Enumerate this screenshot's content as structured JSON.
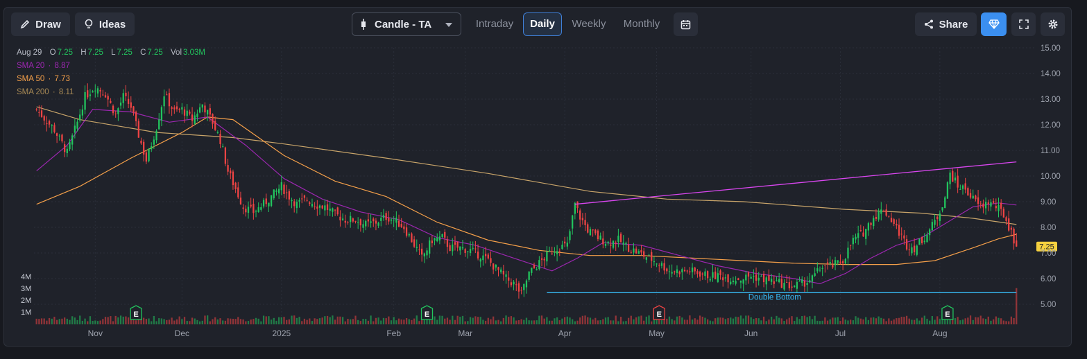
{
  "toolbar": {
    "draw_label": "Draw",
    "ideas_label": "Ideas",
    "chart_type_label": "Candle - TA",
    "timeframes": [
      "Intraday",
      "Daily",
      "Weekly",
      "Monthly"
    ],
    "active_timeframe": "Daily",
    "share_label": "Share",
    "icons": [
      "pencil-icon",
      "lightbulb-icon",
      "candlestick-icon",
      "chevron-down-icon",
      "calendar-icon",
      "share-icon",
      "diamond-icon",
      "fullscreen-icon",
      "gear-icon"
    ]
  },
  "legend": {
    "date": "Aug 29",
    "o_label": "O",
    "o_value": "7.25",
    "h_label": "H",
    "h_value": "7.25",
    "l_label": "L",
    "l_value": "7.25",
    "c_label": "C",
    "c_value": "7.25",
    "vol_label": "Vol",
    "vol_value": "3.03M",
    "sma20_label": "SMA 20",
    "sma20_value": "8.87",
    "sma50_label": "SMA 50",
    "sma50_value": "7.73",
    "sma200_label": "SMA 200",
    "sma200_value": "8.11",
    "sep": "·"
  },
  "colors": {
    "up": "#22c55e",
    "down": "#ef4444",
    "sma20": "#9c27b0",
    "sma50": "#f5a04a",
    "sma200": "#c9a56a",
    "trendline": "#d946ef",
    "support": "#38bdf8",
    "accent": "#3b82f6",
    "price_tag": "#f4d03f"
  },
  "chart_data": {
    "type": "candlestick",
    "y_ticks": [
      "15.00",
      "14.00",
      "13.00",
      "12.00",
      "11.00",
      "10.00",
      "9.00",
      "8.00",
      "7.00",
      "6.00",
      "5.00"
    ],
    "ylim": [
      4.35,
      15.0
    ],
    "volume_ticks": [
      "4M",
      "3M",
      "2M",
      "1M"
    ],
    "x_ticks": [
      {
        "label": "Nov",
        "day": 16
      },
      {
        "label": "Dec",
        "day": 50
      },
      {
        "label": "2025",
        "day": 89
      },
      {
        "label": "Feb",
        "day": 133
      },
      {
        "label": "Mar",
        "day": 161
      },
      {
        "label": "Apr",
        "day": 200
      },
      {
        "label": "May",
        "day": 236
      },
      {
        "label": "Jun",
        "day": 273
      },
      {
        "label": "Jul",
        "day": 308
      },
      {
        "label": "Aug",
        "day": 347
      }
    ],
    "day_range": [
      -8,
      384
    ],
    "last_price": "7.25",
    "close_series": [
      [
        -7,
        12.6
      ],
      [
        0,
        11.8
      ],
      [
        5,
        10.9
      ],
      [
        9,
        12.1
      ],
      [
        12,
        13.1
      ],
      [
        16,
        13.5
      ],
      [
        20,
        13.2
      ],
      [
        24,
        12.4
      ],
      [
        27,
        13.1
      ],
      [
        30,
        12.7
      ],
      [
        33,
        11.6
      ],
      [
        36,
        10.6
      ],
      [
        40,
        11.9
      ],
      [
        43,
        13.2
      ],
      [
        47,
        12.5
      ],
      [
        50,
        12.6
      ],
      [
        54,
        12.2
      ],
      [
        58,
        12.8
      ],
      [
        62,
        12.1
      ],
      [
        65,
        11.4
      ],
      [
        68,
        10.2
      ],
      [
        71,
        9.5
      ],
      [
        74,
        8.8
      ],
      [
        78,
        8.6
      ],
      [
        82,
        8.9
      ],
      [
        86,
        9.3
      ],
      [
        89,
        9.6
      ],
      [
        92,
        9.2
      ],
      [
        95,
        8.9
      ],
      [
        99,
        9.1
      ],
      [
        102,
        8.9
      ],
      [
        106,
        8.8
      ],
      [
        110,
        8.5
      ],
      [
        114,
        8.3
      ],
      [
        118,
        8.3
      ],
      [
        122,
        8.1
      ],
      [
        126,
        8.2
      ],
      [
        130,
        8.4
      ],
      [
        133,
        8.3
      ],
      [
        137,
        8.0
      ],
      [
        140,
        7.5
      ],
      [
        144,
        6.8
      ],
      [
        148,
        7.5
      ],
      [
        152,
        7.6
      ],
      [
        155,
        7.2
      ],
      [
        159,
        7.2
      ],
      [
        163,
        7.1
      ],
      [
        167,
        6.9
      ],
      [
        170,
        6.7
      ],
      [
        174,
        6.3
      ],
      [
        177,
        6.0
      ],
      [
        180,
        5.8
      ],
      [
        183,
        5.4
      ],
      [
        186,
        6.2
      ],
      [
        190,
        6.6
      ],
      [
        194,
        7.0
      ],
      [
        197,
        7.2
      ],
      [
        201,
        7.3
      ],
      [
        204,
        8.9
      ],
      [
        206,
        8.4
      ],
      [
        209,
        7.9
      ],
      [
        213,
        7.6
      ],
      [
        217,
        7.4
      ],
      [
        221,
        7.5
      ],
      [
        225,
        7.2
      ],
      [
        229,
        7.0
      ],
      [
        233,
        6.8
      ],
      [
        237,
        6.6
      ],
      [
        241,
        6.3
      ],
      [
        245,
        6.3
      ],
      [
        249,
        6.3
      ],
      [
        253,
        6.2
      ],
      [
        257,
        6.1
      ],
      [
        261,
        6.1
      ],
      [
        265,
        6.0
      ],
      [
        269,
        6.0
      ],
      [
        273,
        6.1
      ],
      [
        277,
        6.0
      ],
      [
        281,
        5.9
      ],
      [
        285,
        5.8
      ],
      [
        289,
        5.7
      ],
      [
        293,
        5.8
      ],
      [
        297,
        6.0
      ],
      [
        301,
        6.5
      ],
      [
        305,
        6.5
      ],
      [
        309,
        6.7
      ],
      [
        313,
        7.5
      ],
      [
        317,
        7.8
      ],
      [
        321,
        8.4
      ],
      [
        325,
        8.7
      ],
      [
        328,
        8.3
      ],
      [
        331,
        7.8
      ],
      [
        334,
        7.3
      ],
      [
        337,
        7.2
      ],
      [
        340,
        7.5
      ],
      [
        343,
        7.9
      ],
      [
        346,
        8.4
      ],
      [
        349,
        9.2
      ],
      [
        351,
        10.1
      ],
      [
        354,
        9.6
      ],
      [
        357,
        9.5
      ],
      [
        360,
        9.1
      ],
      [
        363,
        8.8
      ],
      [
        366,
        9.0
      ],
      [
        369,
        8.8
      ],
      [
        372,
        8.5
      ],
      [
        375,
        7.8
      ],
      [
        377,
        7.25
      ]
    ],
    "sma20": [
      [
        -7,
        10.2
      ],
      [
        5,
        11.2
      ],
      [
        15,
        12.6
      ],
      [
        30,
        12.5
      ],
      [
        45,
        12.1
      ],
      [
        60,
        12.3
      ],
      [
        75,
        11.2
      ],
      [
        90,
        9.9
      ],
      [
        105,
        9.1
      ],
      [
        120,
        8.6
      ],
      [
        135,
        8.3
      ],
      [
        150,
        7.6
      ],
      [
        165,
        7.3
      ],
      [
        180,
        6.8
      ],
      [
        195,
        6.3
      ],
      [
        205,
        6.8
      ],
      [
        215,
        7.4
      ],
      [
        230,
        7.3
      ],
      [
        245,
        6.9
      ],
      [
        260,
        6.5
      ],
      [
        275,
        6.2
      ],
      [
        290,
        6.0
      ],
      [
        300,
        5.8
      ],
      [
        310,
        6.2
      ],
      [
        320,
        6.8
      ],
      [
        330,
        7.3
      ],
      [
        340,
        7.6
      ],
      [
        350,
        8.2
      ],
      [
        360,
        8.8
      ],
      [
        370,
        8.95
      ],
      [
        377,
        8.87
      ]
    ],
    "sma50": [
      [
        -7,
        8.9
      ],
      [
        10,
        9.6
      ],
      [
        30,
        10.7
      ],
      [
        50,
        11.7
      ],
      [
        60,
        12.3
      ],
      [
        70,
        12.2
      ],
      [
        90,
        10.8
      ],
      [
        110,
        9.8
      ],
      [
        130,
        9.2
      ],
      [
        150,
        8.2
      ],
      [
        170,
        7.5
      ],
      [
        190,
        7.1
      ],
      [
        210,
        6.9
      ],
      [
        230,
        6.9
      ],
      [
        250,
        6.8
      ],
      [
        270,
        6.7
      ],
      [
        290,
        6.6
      ],
      [
        310,
        6.55
      ],
      [
        330,
        6.55
      ],
      [
        345,
        6.7
      ],
      [
        360,
        7.2
      ],
      [
        370,
        7.55
      ],
      [
        377,
        7.73
      ]
    ],
    "sma200": [
      [
        -7,
        12.7
      ],
      [
        10,
        12.2
      ],
      [
        40,
        11.7
      ],
      [
        70,
        11.5
      ],
      [
        90,
        11.25
      ],
      [
        130,
        10.7
      ],
      [
        170,
        10.1
      ],
      [
        210,
        9.4
      ],
      [
        240,
        9.1
      ],
      [
        270,
        9.0
      ],
      [
        310,
        8.7
      ],
      [
        340,
        8.55
      ],
      [
        360,
        8.35
      ],
      [
        377,
        8.11
      ]
    ],
    "trendline": [
      [
        204,
        8.9
      ],
      [
        377,
        10.55
      ]
    ],
    "support": {
      "from": [
        193,
        5.45
      ],
      "to": [
        377,
        5.45
      ],
      "label": "Double Bottom"
    },
    "earnings": [
      {
        "day": 32,
        "label": "E",
        "type": "up"
      },
      {
        "day": 146,
        "label": "E",
        "type": "up"
      },
      {
        "day": 237,
        "label": "E",
        "type": "down"
      },
      {
        "day": 350,
        "label": "E",
        "type": "up"
      }
    ]
  }
}
